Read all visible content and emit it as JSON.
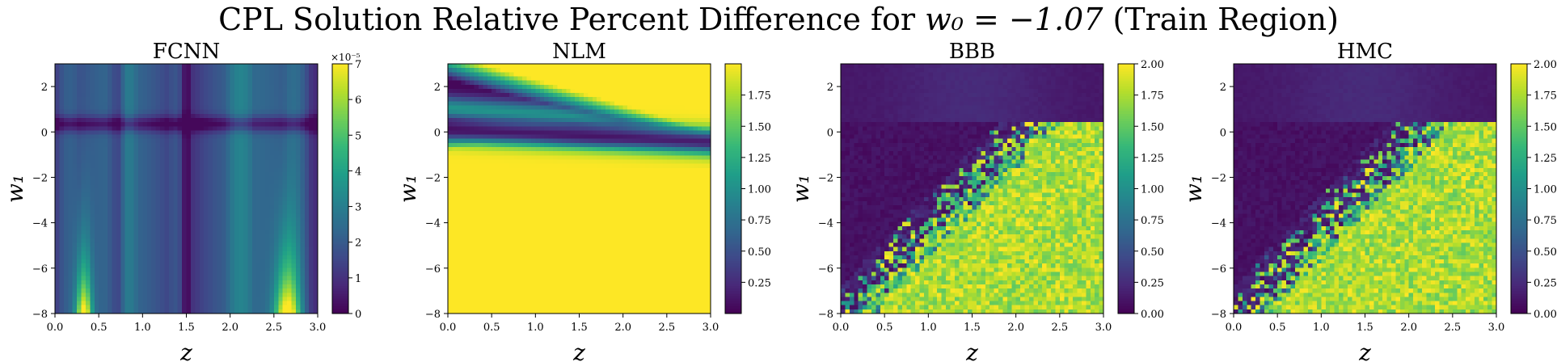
{
  "figure": {
    "title_prefix": "CPL Solution Relative Percent Difference for ",
    "title_math": "w₀ = −1.07",
    "title_suffix": " (Train Region)"
  },
  "colors": {
    "viridis": [
      "#440154",
      "#482878",
      "#3e4989",
      "#31688e",
      "#26828e",
      "#1f9e89",
      "#35b779",
      "#6ece58",
      "#b5de2b",
      "#fde725"
    ]
  },
  "chart_data": [
    {
      "type": "heatmap",
      "title": "FCNN",
      "xlabel": "z",
      "ylabel": "w₁",
      "xlim": [
        0.0,
        3.0
      ],
      "ylim": [
        -8,
        3
      ],
      "xticks": [
        "0.0",
        "0.5",
        "1.0",
        "1.5",
        "2.0",
        "2.5",
        "3.0"
      ],
      "yticks": [
        "2",
        "0",
        "−2",
        "−4",
        "−6",
        "−8"
      ],
      "colorbar": {
        "range": [
          0,
          7
        ],
        "ticks": [
          "0",
          "1",
          "2",
          "3",
          "4",
          "5",
          "6",
          "7"
        ],
        "offset_text": "×10⁻⁵"
      },
      "pattern": "smooth-stripes"
    },
    {
      "type": "heatmap",
      "title": "NLM",
      "xlabel": "z",
      "ylabel": "w₁",
      "xlim": [
        0.0,
        3.0
      ],
      "ylim": [
        -8,
        3
      ],
      "xticks": [
        "0.0",
        "0.5",
        "1.0",
        "1.5",
        "2.0",
        "2.5",
        "3.0"
      ],
      "yticks": [
        "2",
        "0",
        "−2",
        "−4",
        "−6",
        "−8"
      ],
      "colorbar": {
        "range": [
          0.0,
          2.0
        ],
        "ticks": [
          "0.25",
          "0.50",
          "0.75",
          "1.00",
          "1.25",
          "1.50",
          "1.75"
        ],
        "offset_text": ""
      },
      "pattern": "smooth-bands"
    },
    {
      "type": "heatmap",
      "title": "BBB",
      "xlabel": "z",
      "ylabel": "w₁",
      "xlim": [
        0.0,
        3.0
      ],
      "ylim": [
        -8,
        3
      ],
      "xticks": [
        "0.0",
        "0.5",
        "1.0",
        "1.5",
        "2.0",
        "2.5",
        "3.0"
      ],
      "yticks": [
        "2",
        "0",
        "−2",
        "−4",
        "−6",
        "−8"
      ],
      "colorbar": {
        "range": [
          0.0,
          2.0
        ],
        "ticks": [
          "0.00",
          "0.25",
          "0.50",
          "0.75",
          "1.00",
          "1.25",
          "1.50",
          "1.75",
          "2.00"
        ],
        "offset_text": ""
      },
      "pattern": "noisy-corner"
    },
    {
      "type": "heatmap",
      "title": "HMC",
      "xlabel": "z",
      "ylabel": "w₁",
      "xlim": [
        0.0,
        3.0
      ],
      "ylim": [
        -8,
        3
      ],
      "xticks": [
        "0.0",
        "0.5",
        "1.0",
        "1.5",
        "2.0",
        "2.5",
        "3.0"
      ],
      "yticks": [
        "2",
        "0",
        "−2",
        "−4",
        "−6",
        "−8"
      ],
      "colorbar": {
        "range": [
          0.0,
          2.0
        ],
        "ticks": [
          "0.00",
          "0.25",
          "0.50",
          "0.75",
          "1.00",
          "1.25",
          "1.50",
          "1.75",
          "2.00"
        ],
        "offset_text": ""
      },
      "pattern": "noisy-corner"
    }
  ]
}
